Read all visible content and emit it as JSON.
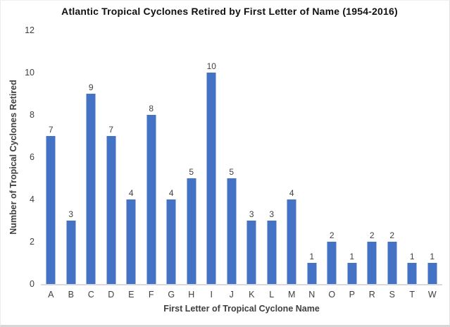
{
  "chart_data": {
    "type": "bar",
    "title": "Atlantic Tropical Cyclones Retired by First Letter of Name (1954-2016)",
    "xlabel": "First Letter of Tropical Cyclone Name",
    "ylabel": "Number of Tropical Cyclones Retired",
    "categories": [
      "A",
      "B",
      "C",
      "D",
      "E",
      "F",
      "G",
      "H",
      "I",
      "J",
      "K",
      "L",
      "M",
      "N",
      "O",
      "P",
      "R",
      "S",
      "T",
      "W"
    ],
    "values": [
      7,
      3,
      9,
      7,
      4,
      8,
      4,
      5,
      10,
      5,
      3,
      3,
      4,
      1,
      2,
      1,
      2,
      2,
      1,
      1
    ],
    "data_labels": true,
    "ylim": [
      0,
      12
    ],
    "yticks": [
      0,
      2,
      4,
      6,
      8,
      10,
      12
    ],
    "grid": false,
    "legend": "none",
    "bar_color": "#4472C4",
    "axis_line_color": "#d9d9d9",
    "label_color": "#404040",
    "title_color": "#111111"
  }
}
